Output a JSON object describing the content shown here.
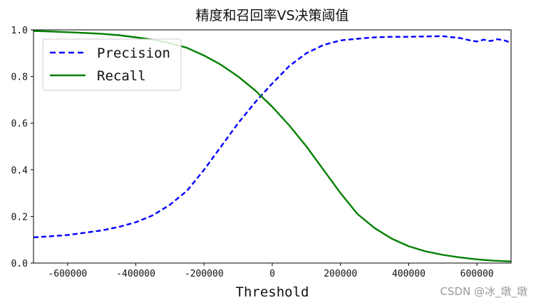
{
  "chart_data": {
    "type": "line",
    "title": "精度和召回率VS决策阈值",
    "xlabel": "Threshold",
    "ylabel": "",
    "xlim": [
      -700000,
      700000
    ],
    "ylim": [
      0,
      1
    ],
    "xticks": [
      -600000,
      -400000,
      -200000,
      0,
      200000,
      400000,
      600000
    ],
    "yticks": [
      0.0,
      0.2,
      0.4,
      0.6,
      0.8,
      1.0
    ],
    "xtick_labels": [
      "-600000",
      "-400000",
      "-200000",
      "0",
      "200000",
      "400000",
      "600000"
    ],
    "ytick_labels": [
      "0.0",
      "0.2",
      "0.4",
      "0.6",
      "0.8",
      "1.0"
    ],
    "grid": false,
    "legend_position": "top-left",
    "series": [
      {
        "name": "Precision",
        "color": "#0000ff",
        "style": "dashed",
        "x": [
          -700000,
          -650000,
          -600000,
          -550000,
          -500000,
          -450000,
          -400000,
          -350000,
          -300000,
          -250000,
          -200000,
          -150000,
          -100000,
          -50000,
          0,
          50000,
          100000,
          150000,
          200000,
          250000,
          300000,
          350000,
          400000,
          450000,
          500000,
          550000,
          580000,
          600000,
          620000,
          640000,
          660000,
          680000,
          700000
        ],
        "y": [
          0.11,
          0.115,
          0.12,
          0.13,
          0.14,
          0.155,
          0.175,
          0.205,
          0.25,
          0.31,
          0.4,
          0.5,
          0.6,
          0.69,
          0.77,
          0.845,
          0.9,
          0.935,
          0.955,
          0.962,
          0.968,
          0.97,
          0.97,
          0.972,
          0.973,
          0.965,
          0.955,
          0.95,
          0.958,
          0.952,
          0.96,
          0.955,
          0.945
        ]
      },
      {
        "name": "Recall",
        "color": "#008000",
        "style": "solid",
        "x": [
          -700000,
          -650000,
          -600000,
          -550000,
          -500000,
          -450000,
          -400000,
          -350000,
          -300000,
          -250000,
          -200000,
          -150000,
          -100000,
          -50000,
          0,
          50000,
          100000,
          150000,
          200000,
          250000,
          300000,
          350000,
          400000,
          450000,
          500000,
          550000,
          600000,
          650000,
          700000
        ],
        "y": [
          0.995,
          0.993,
          0.99,
          0.987,
          0.983,
          0.977,
          0.968,
          0.958,
          0.943,
          0.923,
          0.89,
          0.85,
          0.8,
          0.74,
          0.67,
          0.59,
          0.5,
          0.4,
          0.3,
          0.21,
          0.15,
          0.105,
          0.072,
          0.05,
          0.035,
          0.024,
          0.016,
          0.01,
          0.007
        ]
      }
    ]
  },
  "watermark": "CSDN @冰_墩_墩"
}
